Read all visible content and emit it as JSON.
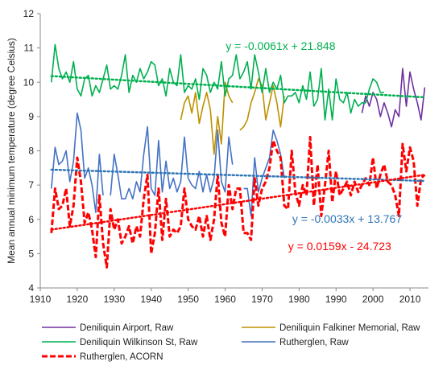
{
  "chart_data": {
    "type": "line",
    "title": "",
    "xlabel": "",
    "ylabel": "Mean annual minimum temperature (degree Celsius)",
    "xlim": [
      1910,
      2015
    ],
    "ylim": [
      4,
      12
    ],
    "x_ticks": [
      "1910",
      "1920",
      "1930",
      "1940",
      "1950",
      "1960",
      "1970",
      "1980",
      "1990",
      "2000",
      "2010"
    ],
    "y_ticks": [
      "4",
      "5",
      "6",
      "7",
      "8",
      "9",
      "10",
      "11",
      "12"
    ],
    "grid": false,
    "legend_position": "bottom",
    "series": [
      {
        "name": "Deniliquin Airport, Raw",
        "color": "#7030a0",
        "style": "solid",
        "x": [
          1997,
          1998,
          1999,
          2000,
          2001,
          2002,
          2003,
          2004,
          2005,
          2006,
          2007,
          2008,
          2009,
          2010,
          2011,
          2012,
          2013,
          2014
        ],
        "y": [
          9.1,
          9.6,
          9.3,
          9.7,
          9.5,
          9.0,
          9.4,
          9.1,
          8.7,
          9.2,
          9.0,
          10.4,
          9.3,
          10.3,
          9.8,
          9.4,
          8.9,
          9.85
        ]
      },
      {
        "name": "Deniliquin Falkiner Memorial, Raw",
        "color": "#bf9000",
        "style": "solid",
        "x": [
          1948,
          1949,
          1950,
          1951,
          1952,
          1953,
          1954,
          1955,
          1956,
          1957,
          1958,
          1959,
          1960,
          1961,
          1962,
          1963,
          1964,
          1965,
          1966,
          1967,
          1968,
          1969,
          1970,
          1971,
          1972,
          1973,
          1974,
          1975,
          1976
        ],
        "y": [
          8.9,
          9.4,
          9.6,
          9.1,
          9.7,
          8.8,
          9.3,
          9.7,
          9.2,
          7.9,
          9.0,
          8.2,
          10.0,
          9.6,
          9.4,
          null,
          8.6,
          8.7,
          8.9,
          9.4,
          9.7,
          10.1,
          9.9,
          8.9,
          9.4,
          9.9,
          9.4,
          8.7,
          9.6
        ]
      },
      {
        "name": "Deniliquin Wilkinson St, Raw",
        "color": "#00b050",
        "style": "solid",
        "x": [
          1913,
          1914,
          1915,
          1916,
          1917,
          1918,
          1919,
          1920,
          1921,
          1922,
          1923,
          1924,
          1925,
          1926,
          1927,
          1928,
          1929,
          1930,
          1931,
          1932,
          1933,
          1934,
          1935,
          1936,
          1937,
          1938,
          1939,
          1940,
          1941,
          1942,
          1943,
          1944,
          1945,
          1946,
          1947,
          1948,
          1949,
          1950,
          1951,
          1952,
          1953,
          1954,
          1955,
          1956,
          1957,
          1958,
          1959,
          1960,
          1961,
          1962,
          1963,
          1964,
          1965,
          1966,
          1967,
          1968,
          1969,
          1970,
          1971,
          1972,
          1973,
          1974,
          1975,
          1976,
          1977,
          1978,
          1979,
          1980,
          1981,
          1982,
          1983,
          1984,
          1985,
          1986,
          1987,
          1988,
          1989,
          1990,
          1991,
          1992,
          1993,
          1994,
          1995,
          1996,
          1997,
          1998,
          1999,
          2000,
          2001,
          2002,
          2003
        ],
        "y": [
          10.0,
          11.1,
          10.4,
          10.1,
          10.3,
          10.0,
          10.6,
          9.8,
          9.6,
          10.1,
          10.2,
          9.6,
          9.9,
          9.7,
          10.1,
          10.5,
          9.8,
          9.9,
          9.8,
          10.2,
          10.8,
          9.7,
          10.2,
          10.0,
          10.4,
          10.1,
          10.3,
          10.6,
          10.5,
          9.9,
          10.1,
          9.6,
          10.4,
          10.0,
          9.9,
          10.8,
          9.7,
          9.9,
          9.8,
          10.1,
          9.5,
          10.4,
          10.2,
          9.7,
          10.0,
          9.8,
          10.6,
          9.6,
          10.1,
          10.2,
          10.8,
          10.1,
          10.3,
          10.6,
          9.8,
          10.8,
          10.3,
          9.7,
          10.4,
          9.7,
          10.0,
          9.8,
          10.2,
          9.4,
          9.6,
          9.6,
          9.7,
          9.4,
          9.9,
          9.5,
          10.3,
          9.3,
          9.5,
          10.4,
          8.9,
          9.8,
          8.9,
          10.1,
          9.5,
          9.4,
          9.7,
          9.1,
          9.5,
          9.3,
          9.4,
          9.4,
          9.8,
          10.1,
          10.0,
          9.7,
          9.7
        ]
      },
      {
        "name": "Rutherglen, Raw",
        "color": "#4472c4",
        "style": "solid",
        "x": [
          1913,
          1914,
          1915,
          1916,
          1917,
          1918,
          1919,
          1920,
          1921,
          1922,
          1923,
          1924,
          1925,
          1926,
          1927,
          1928,
          1929,
          1930,
          1931,
          1932,
          1933,
          1934,
          1935,
          1936,
          1937,
          1938,
          1939,
          1940,
          1941,
          1942,
          1943,
          1944,
          1945,
          1946,
          1947,
          1948,
          1949,
          1950,
          1951,
          1952,
          1953,
          1954,
          1955,
          1956,
          1957,
          1958,
          1959,
          1960,
          1961,
          1962,
          1963,
          1964,
          1965,
          1966,
          1967,
          1968,
          1969,
          1970,
          1971,
          1972,
          1973,
          1974,
          1975,
          1976
        ],
        "y": [
          6.9,
          8.1,
          7.6,
          7.7,
          8.0,
          7.1,
          7.7,
          9.1,
          8.6,
          7.2,
          7.5,
          7.0,
          6.2,
          7.9,
          6.7,
          null,
          6.7,
          7.9,
          7.3,
          6.6,
          6.6,
          6.9,
          6.6,
          7.1,
          6.8,
          7.9,
          8.7,
          6.9,
          6.7,
          8.3,
          6.8,
          7.7,
          6.9,
          7.2,
          6.8,
          7.1,
          8.4,
          7.2,
          7.0,
          6.9,
          7.4,
          6.8,
          7.3,
          6.8,
          7.2,
          8.6,
          7.1,
          6.8,
          8.4,
          7.6,
          null,
          null,
          6.9,
          6.9,
          6.1,
          7.8,
          6.8,
          7.2,
          7.5,
          7.8,
          8.6,
          8.3,
          7.9,
          7.2
        ]
      },
      {
        "name": "Rutherglen, ACORN",
        "color": "#ff0000",
        "style": "dashed",
        "x": [
          1913,
          1914,
          1915,
          1916,
          1917,
          1918,
          1919,
          1920,
          1921,
          1922,
          1923,
          1924,
          1925,
          1926,
          1927,
          1928,
          1929,
          1930,
          1931,
          1932,
          1933,
          1934,
          1935,
          1936,
          1937,
          1938,
          1939,
          1940,
          1941,
          1942,
          1943,
          1944,
          1945,
          1946,
          1947,
          1948,
          1949,
          1950,
          1951,
          1952,
          1953,
          1954,
          1955,
          1956,
          1957,
          1958,
          1959,
          1960,
          1961,
          1962,
          1963,
          1964,
          1965,
          1966,
          1967,
          1968,
          1969,
          1970,
          1971,
          1972,
          1973,
          1974,
          1975,
          1976,
          1977,
          1978,
          1979,
          1980,
          1981,
          1982,
          1983,
          1984,
          1985,
          1986,
          1987,
          1988,
          1989,
          1990,
          1991,
          1992,
          1993,
          1994,
          1995,
          1996,
          1997,
          1998,
          1999,
          2000,
          2001,
          2002,
          2003,
          2004,
          2005,
          2006,
          2007,
          2008,
          2009,
          2010,
          2011,
          2012,
          2013,
          2014
        ],
        "y": [
          5.6,
          6.9,
          6.3,
          6.4,
          6.9,
          5.8,
          6.4,
          7.8,
          7.1,
          5.9,
          6.2,
          5.7,
          4.9,
          6.7,
          5.3,
          4.6,
          6.3,
          5.7,
          6.0,
          5.3,
          5.5,
          5.8,
          5.3,
          5.8,
          5.5,
          6.6,
          7.3,
          5.0,
          5.6,
          6.9,
          5.4,
          6.6,
          5.5,
          5.7,
          5.6,
          5.8,
          6.9,
          6.0,
          5.8,
          5.7,
          6.1,
          5.5,
          6.1,
          5.4,
          6.0,
          7.3,
          5.9,
          5.5,
          7.0,
          6.3,
          6.9,
          6.9,
          5.6,
          5.6,
          5.4,
          7.2,
          6.4,
          6.9,
          7.1,
          7.5,
          8.3,
          8.0,
          7.8,
          6.4,
          6.3,
          8.0,
          6.8,
          6.4,
          7.0,
          6.7,
          8.4,
          6.4,
          7.6,
          6.1,
          7.0,
          8.0,
          6.5,
          7.4,
          6.7,
          6.9,
          7.1,
          6.7,
          7.1,
          6.8,
          7.0,
          7.2,
          7.0,
          7.8,
          6.9,
          7.3,
          7.6,
          7.1,
          7.0,
          6.7,
          6.1,
          8.2,
          7.4,
          8.1,
          7.7,
          6.4,
          7.2,
          7.3
        ]
      }
    ],
    "trendlines": [
      {
        "color": "#00b050",
        "x": [
          1913,
          2014
        ],
        "y": [
          10.18,
          9.56
        ],
        "label": "y = -0.0061x + 21.848",
        "label_at": [
          1975,
          10.95
        ]
      },
      {
        "color": "#2e75b6",
        "x": [
          1913,
          2014
        ],
        "y": [
          7.45,
          7.12
        ],
        "label": "y = -0.0033x + 13.767",
        "label_at": [
          1993,
          5.9
        ]
      },
      {
        "color": "#ff0000",
        "x": [
          1913,
          2014
        ],
        "y": [
          5.7,
          7.3
        ],
        "label": "y = 0.0159x - 24.723",
        "label_at": [
          1991,
          5.1
        ]
      }
    ]
  }
}
